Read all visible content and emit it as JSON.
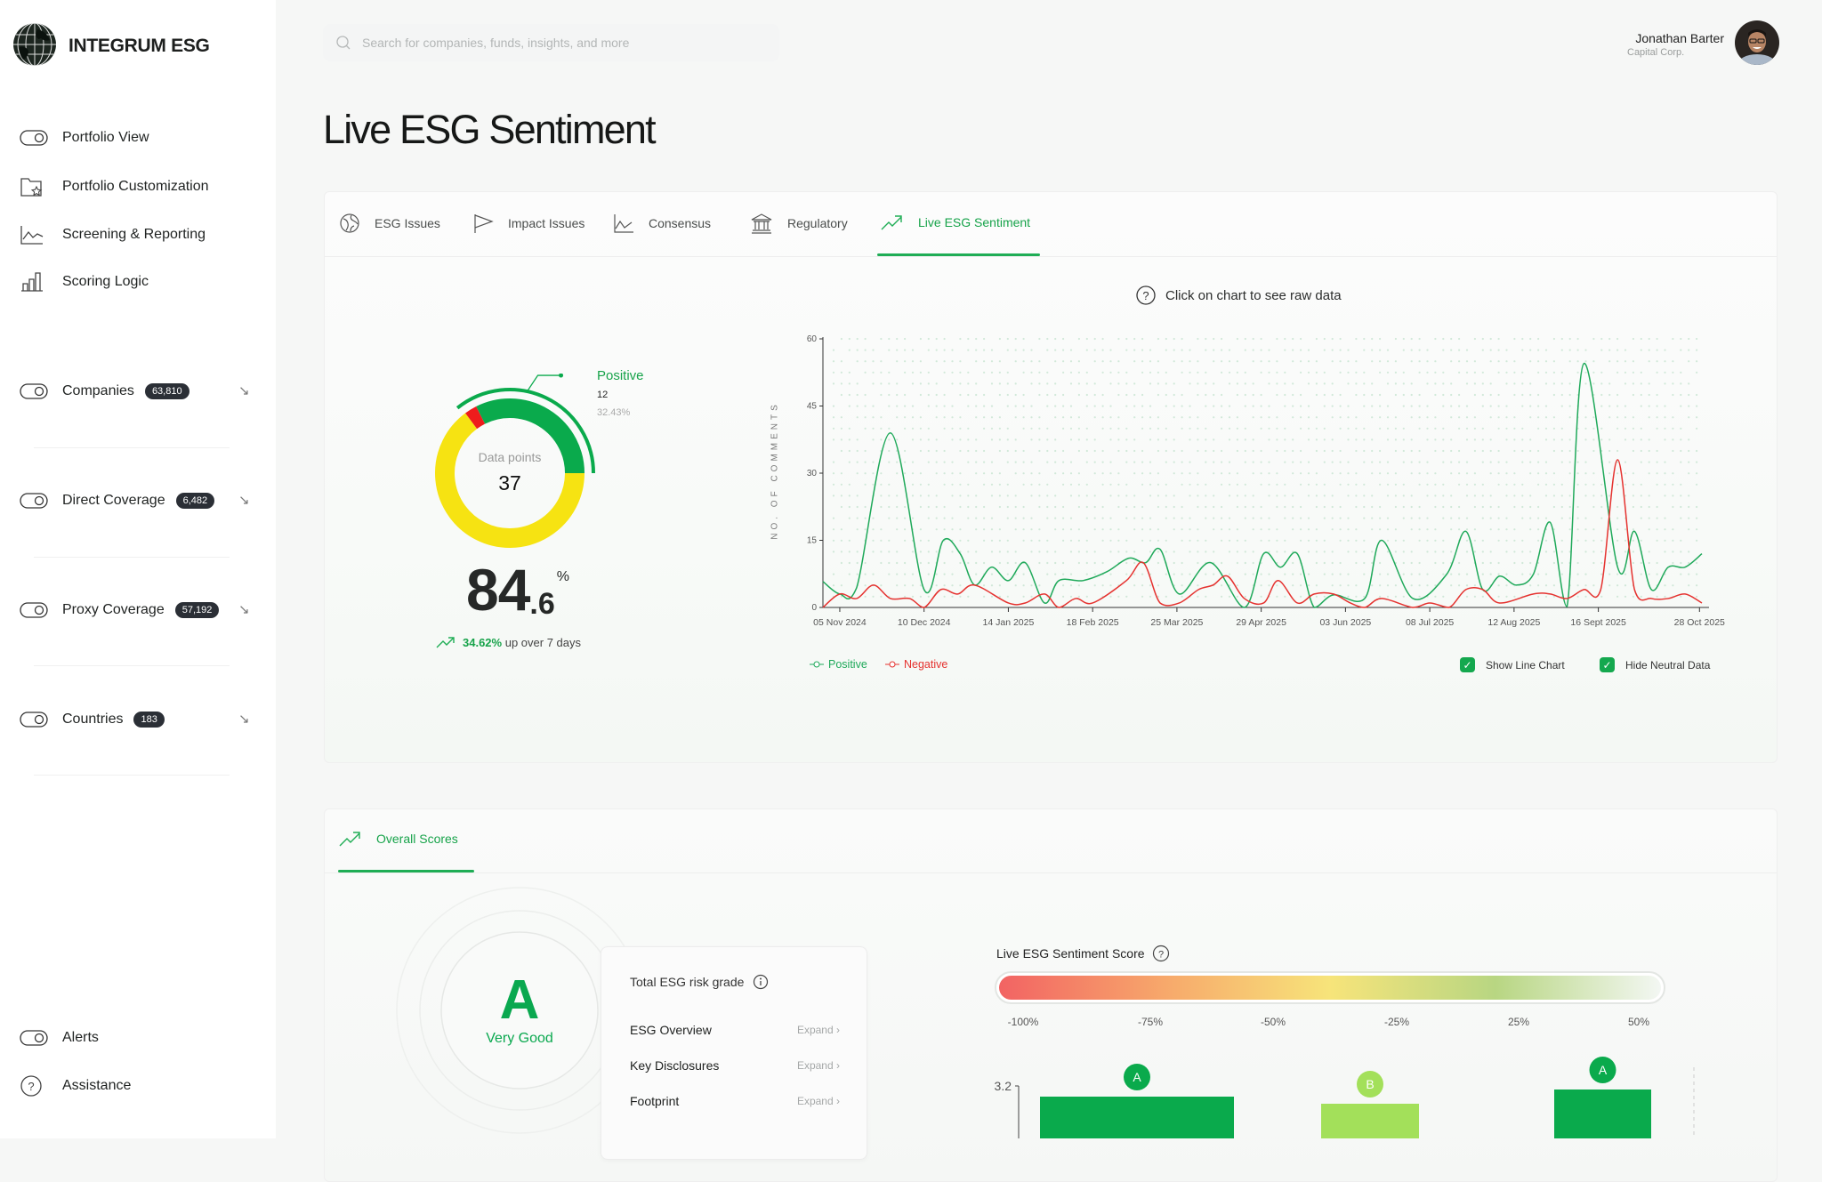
{
  "brand": {
    "name": "INTEGRUM ESG",
    "logo_icon": "globe-icon"
  },
  "search": {
    "placeholder": "Search for companies, funds, insights, and more",
    "value": ""
  },
  "user": {
    "name": "Jonathan Barter",
    "company": "Capital Corp."
  },
  "sidebar": {
    "nav": [
      {
        "label": "Portfolio View",
        "icon": "toggle-icon"
      },
      {
        "label": "Portfolio Customization",
        "icon": "folder-star-icon"
      },
      {
        "label": "Screening & Reporting",
        "icon": "line-chart-icon"
      },
      {
        "label": "Scoring Logic",
        "icon": "bar-chart-icon"
      }
    ],
    "coverage": [
      {
        "label": "Companies",
        "count": "63,810"
      },
      {
        "label": "Direct Coverage",
        "count": "6,482"
      },
      {
        "label": "Proxy Coverage",
        "count": "57,192"
      },
      {
        "label": "Countries",
        "count": "183"
      }
    ],
    "bottom": [
      {
        "label": "Alerts",
        "icon": "toggle-icon"
      },
      {
        "label": "Assistance",
        "icon": "help-circle-icon"
      }
    ]
  },
  "page": {
    "title": "Live ESG Sentiment"
  },
  "tabs": [
    {
      "label": "ESG Issues",
      "icon": "globe-icon"
    },
    {
      "label": "Impact Issues",
      "icon": "flag-icon"
    },
    {
      "label": "Consensus",
      "icon": "line-chart-icon"
    },
    {
      "label": "Regulatory",
      "icon": "bank-icon"
    },
    {
      "label": "Live ESG Sentiment",
      "icon": "trending-up-icon",
      "active": true
    }
  ],
  "sentiment": {
    "hint": "Click on chart to see raw data",
    "donut": {
      "center_label": "Data points",
      "total": "37",
      "segments": [
        {
          "name": "Positive",
          "value": 12,
          "color": "#0aaa4c"
        },
        {
          "name": "Negative",
          "value": 1,
          "color": "#ee1c1c"
        },
        {
          "name": "Neutral",
          "value": 24,
          "color": "#f6e312"
        }
      ],
      "callout": {
        "label": "Positive",
        "count": "12",
        "percent": "32.43%"
      }
    },
    "score": {
      "whole": "84",
      "decimal": ".6",
      "unit": "%"
    },
    "change": {
      "value": "34.62%",
      "text": "up over 7 days"
    },
    "legend": [
      {
        "label": "Positive",
        "color": "#1fa95a"
      },
      {
        "label": "Negative",
        "color": "#e5322f"
      }
    ],
    "options": [
      {
        "label": "Show Line Chart",
        "checked": true
      },
      {
        "label": "Hide Neutral Data",
        "checked": true
      }
    ]
  },
  "chart_data": {
    "type": "line",
    "ylabel": "NO. OF COMMENTS",
    "ylim": [
      0,
      60
    ],
    "yticks": [
      0,
      15,
      30,
      45,
      60
    ],
    "xlim": [
      "2024-10-29",
      "2025-10-29"
    ],
    "xticks": [
      {
        "date": "2024-11-05",
        "label": "05 Nov 2024"
      },
      {
        "date": "2024-12-10",
        "label": "10 Dec 2024"
      },
      {
        "date": "2025-01-14",
        "label": "14 Jan 2025"
      },
      {
        "date": "2025-02-18",
        "label": "18 Feb 2025"
      },
      {
        "date": "2025-03-25",
        "label": "25 Mar 2025"
      },
      {
        "date": "2025-04-29",
        "label": "29 Apr 2025"
      },
      {
        "date": "2025-06-03",
        "label": "03 Jun 2025"
      },
      {
        "date": "2025-07-08",
        "label": "08 Jul 2025"
      },
      {
        "date": "2025-08-12",
        "label": "12 Aug 2025"
      },
      {
        "date": "2025-09-16",
        "label": "16 Sept 2025"
      },
      {
        "date": "2025-10-28",
        "label": "28 Oct 2025"
      }
    ],
    "series": [
      {
        "name": "Positive",
        "color": "#1fa95a",
        "points": [
          [
            "2024-10-29",
            5.8
          ],
          [
            "2024-11-05",
            3
          ],
          [
            "2024-11-12",
            4.4
          ],
          [
            "2024-11-26",
            39
          ],
          [
            "2024-12-10",
            4
          ],
          [
            "2024-12-18",
            15
          ],
          [
            "2024-12-25",
            12
          ],
          [
            "2024-12-31",
            5
          ],
          [
            "2025-01-07",
            9
          ],
          [
            "2025-01-14",
            6
          ],
          [
            "2025-01-21",
            10
          ],
          [
            "2025-01-29",
            1
          ],
          [
            "2025-02-04",
            6
          ],
          [
            "2025-02-14",
            6
          ],
          [
            "2025-02-24",
            8
          ],
          [
            "2025-03-05",
            11
          ],
          [
            "2025-03-12",
            10
          ],
          [
            "2025-03-18",
            13
          ],
          [
            "2025-03-26",
            3
          ],
          [
            "2025-04-08",
            10
          ],
          [
            "2025-04-22",
            0
          ],
          [
            "2025-04-30",
            12
          ],
          [
            "2025-05-07",
            9
          ],
          [
            "2025-05-14",
            12
          ],
          [
            "2025-05-21",
            0
          ],
          [
            "2025-05-29",
            2.8
          ],
          [
            "2025-06-11",
            2
          ],
          [
            "2025-06-18",
            15
          ],
          [
            "2025-07-01",
            2
          ],
          [
            "2025-07-15",
            7.4
          ],
          [
            "2025-07-23",
            17
          ],
          [
            "2025-07-30",
            4
          ],
          [
            "2025-08-06",
            7
          ],
          [
            "2025-08-13",
            5
          ],
          [
            "2025-08-20",
            7.4
          ],
          [
            "2025-08-27",
            19
          ],
          [
            "2025-09-03",
            0.2
          ],
          [
            "2025-09-10",
            54.5
          ],
          [
            "2025-09-24",
            9
          ],
          [
            "2025-10-01",
            17
          ],
          [
            "2025-10-08",
            4
          ],
          [
            "2025-10-15",
            9
          ],
          [
            "2025-10-22",
            9
          ],
          [
            "2025-10-29",
            12
          ]
        ]
      },
      {
        "name": "Negative",
        "color": "#e5322f",
        "points": [
          [
            "2024-10-29",
            0
          ],
          [
            "2024-11-05",
            3
          ],
          [
            "2024-11-12",
            2
          ],
          [
            "2024-11-19",
            5
          ],
          [
            "2024-11-26",
            2
          ],
          [
            "2024-12-04",
            2
          ],
          [
            "2024-12-10",
            0
          ],
          [
            "2024-12-17",
            4
          ],
          [
            "2024-12-24",
            3
          ],
          [
            "2024-12-31",
            5
          ],
          [
            "2025-01-14",
            1
          ],
          [
            "2025-01-21",
            1
          ],
          [
            "2025-01-29",
            3
          ],
          [
            "2025-02-04",
            0
          ],
          [
            "2025-02-11",
            2
          ],
          [
            "2025-02-18",
            1
          ],
          [
            "2025-03-04",
            6
          ],
          [
            "2025-03-11",
            10
          ],
          [
            "2025-03-18",
            1
          ],
          [
            "2025-03-26",
            1
          ],
          [
            "2025-04-03",
            4
          ],
          [
            "2025-04-09",
            5
          ],
          [
            "2025-04-15",
            7
          ],
          [
            "2025-04-22",
            2
          ],
          [
            "2025-04-30",
            1
          ],
          [
            "2025-05-06",
            6
          ],
          [
            "2025-05-14",
            1
          ],
          [
            "2025-05-21",
            3
          ],
          [
            "2025-05-29",
            3
          ],
          [
            "2025-06-05",
            1
          ],
          [
            "2025-06-11",
            0
          ],
          [
            "2025-06-18",
            2
          ],
          [
            "2025-07-01",
            0
          ],
          [
            "2025-07-08",
            1
          ],
          [
            "2025-07-16",
            0
          ],
          [
            "2025-07-23",
            4
          ],
          [
            "2025-07-30",
            4
          ],
          [
            "2025-08-06",
            1
          ],
          [
            "2025-08-20",
            3
          ],
          [
            "2025-08-27",
            3
          ],
          [
            "2025-09-03",
            2
          ],
          [
            "2025-09-10",
            4
          ],
          [
            "2025-09-17",
            4
          ],
          [
            "2025-09-24",
            33
          ],
          [
            "2025-10-01",
            4
          ],
          [
            "2025-10-08",
            2
          ],
          [
            "2025-10-15",
            2
          ],
          [
            "2025-10-22",
            3
          ],
          [
            "2025-10-29",
            1
          ]
        ]
      }
    ],
    "background": "neutral dot grid",
    "grid": false
  },
  "overall": {
    "tab": {
      "label": "Overall Scores",
      "icon": "trending-up-icon"
    },
    "grade": {
      "letter": "A",
      "text": "Very Good",
      "color": "#0aa84f"
    },
    "risk_card": {
      "title": "Total ESG risk grade",
      "rows": [
        {
          "label": "ESG Overview",
          "action": "Expand"
        },
        {
          "label": "Key Disclosures",
          "action": "Expand"
        },
        {
          "label": "Footprint",
          "action": "Expand"
        }
      ]
    },
    "score_scale": {
      "title": "Live ESG Sentiment Score",
      "labels": [
        "-100%",
        "-75%",
        "-50%",
        "-25%",
        "25%",
        "50%"
      ],
      "gradient": [
        "#f26363",
        "#f7a86b",
        "#f7e47a",
        "#b8d682",
        "#f3f7f3"
      ]
    },
    "bar_chart": {
      "ytick": "3.2",
      "bars": [
        {
          "grade": "A",
          "value": 3.05,
          "color": "#0aaa4c"
        },
        {
          "grade": "B",
          "value": 2.95,
          "color": "#a3e05a"
        },
        {
          "grade": "A",
          "value": 3.15,
          "color": "#0aaa4c"
        }
      ]
    }
  }
}
